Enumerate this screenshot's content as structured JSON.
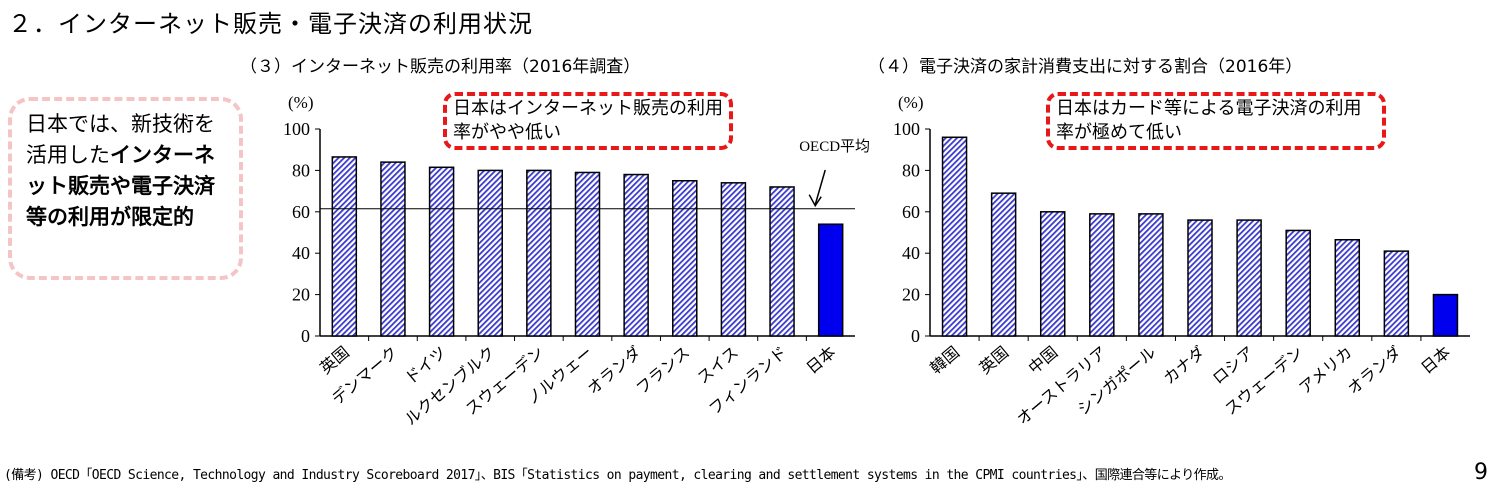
{
  "title": "２．インターネット販売・電子決済の利用状況",
  "callout": {
    "plain": "日本では、新技術を活用した",
    "bold": "インターネット販売や電子決済等の利用が限定的"
  },
  "colors": {
    "bar": "#3a3acc",
    "japan": "#0000ee",
    "callout_border": "#e81818",
    "side_border": "#f5c5c5"
  },
  "chart_data": [
    {
      "type": "bar",
      "title": "（３）インターネット販売の利用率（2016年調査）",
      "ylabel": "(%)",
      "ylim": [
        0,
        100
      ],
      "yticks": [
        0,
        20,
        40,
        60,
        80,
        100
      ],
      "categories": [
        "英国",
        "デンマーク",
        "ドイツ",
        "ルクセンブルク",
        "スウェーデン",
        "ノルウェー",
        "オランダ",
        "フランス",
        "スイス",
        "フィンランド",
        "日本"
      ],
      "values": [
        86.5,
        84,
        81.5,
        80,
        80,
        79,
        78,
        75,
        74,
        72,
        54
      ],
      "reference_line": {
        "label": "OECD平均",
        "value": 61.5
      },
      "annotation": "日本はインターネット販売の利用率がやや低い"
    },
    {
      "type": "bar",
      "title": "（４）電子決済の家計消費支出に対する割合（2016年）",
      "ylabel": "(%)",
      "ylim": [
        0,
        100
      ],
      "yticks": [
        0,
        20,
        40,
        60,
        80,
        100
      ],
      "categories": [
        "韓国",
        "英国",
        "中国",
        "オーストラリア",
        "シンガポール",
        "カナダ",
        "ロシア",
        "スウェーデン",
        "アメリカ",
        "オランダ",
        "日本"
      ],
      "values": [
        96,
        69,
        60,
        59,
        59,
        56,
        56,
        51,
        46.5,
        41,
        20
      ],
      "annotation": "日本はカード等による電子決済の利用率が極めて低い"
    }
  ],
  "footer": "(備考) OECD「OECD Science, Technology and Industry Scoreboard 2017」、BIS「Statistics on payment, clearing and settlement systems in the CPMI countries」、国際連合等により作成。",
  "page_number": "9"
}
